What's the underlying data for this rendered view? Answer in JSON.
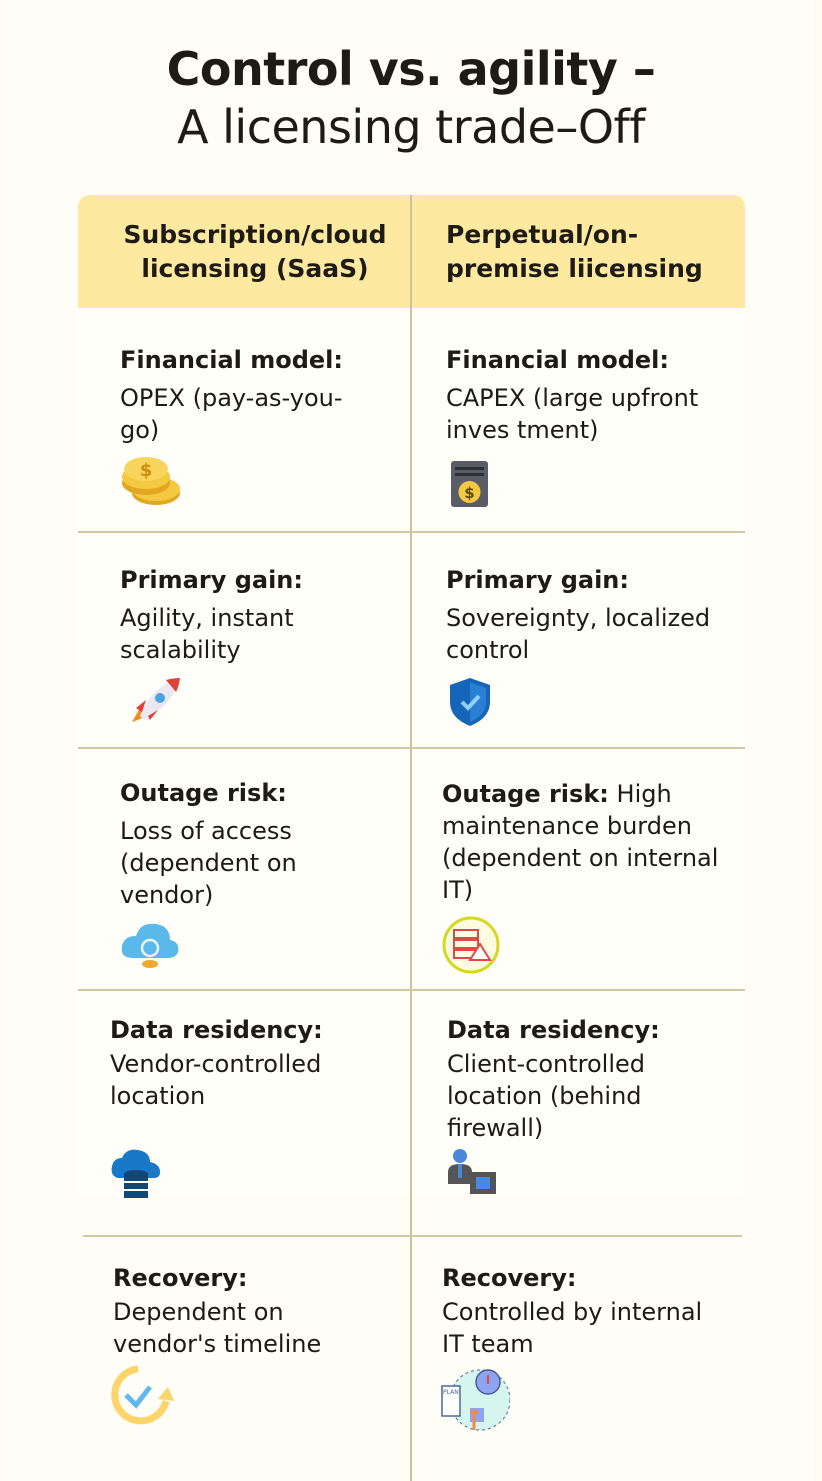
{
  "title": {
    "line1": "Control vs. agility –",
    "line2": "A licensing trade–Off"
  },
  "columns": [
    {
      "header": "Subscription/cloud licensing (SaaS)"
    },
    {
      "header": "Perpetual/on-premise liicensing"
    }
  ],
  "rows": [
    {
      "left": {
        "label": "Financial model:",
        "text": "OPEX (pay-as-you-go)",
        "icon": "coins-icon"
      },
      "right": {
        "label": "Financial model:",
        "text": "CAPEX (large upfront inves tment)",
        "icon": "server-dollar-icon"
      }
    },
    {
      "left": {
        "label": "Primary gain:",
        "text": "Agility, instant scalability",
        "icon": "rocket-icon"
      },
      "right": {
        "label": "Primary gain:",
        "text": "Sovereignty, localized control",
        "icon": "shield-check-icon"
      }
    },
    {
      "left": {
        "label": "Outage risk:",
        "text": "Loss of access (dependent on vendor)",
        "icon": "cloud-sync-icon"
      },
      "right": {
        "label": "Outage risk:",
        "text": "High maintenance burden (dependent on internal IT)",
        "icon": "server-warning-icon"
      }
    },
    {
      "left": {
        "label": "Data residency:",
        "text": "Vendor-controlled location",
        "icon": "cloud-database-icon"
      },
      "right": {
        "label": "Data residency:",
        "text": "Client-controlled location (behind firewall)",
        "icon": "it-admin-chip-icon"
      }
    },
    {
      "left": {
        "label": "Recovery:",
        "text": "Dependent on vendor's timeline",
        "icon": "refresh-check-icon"
      },
      "right": {
        "label": "Recovery:",
        "text": "Controlled by internal IT team",
        "icon": "plan-gear-team-icon",
        "icon_text": "PLAN"
      }
    }
  ],
  "colors": {
    "header_bg": "#fde9a0",
    "background": "#fefdf6",
    "divider": "#c9c29a"
  }
}
